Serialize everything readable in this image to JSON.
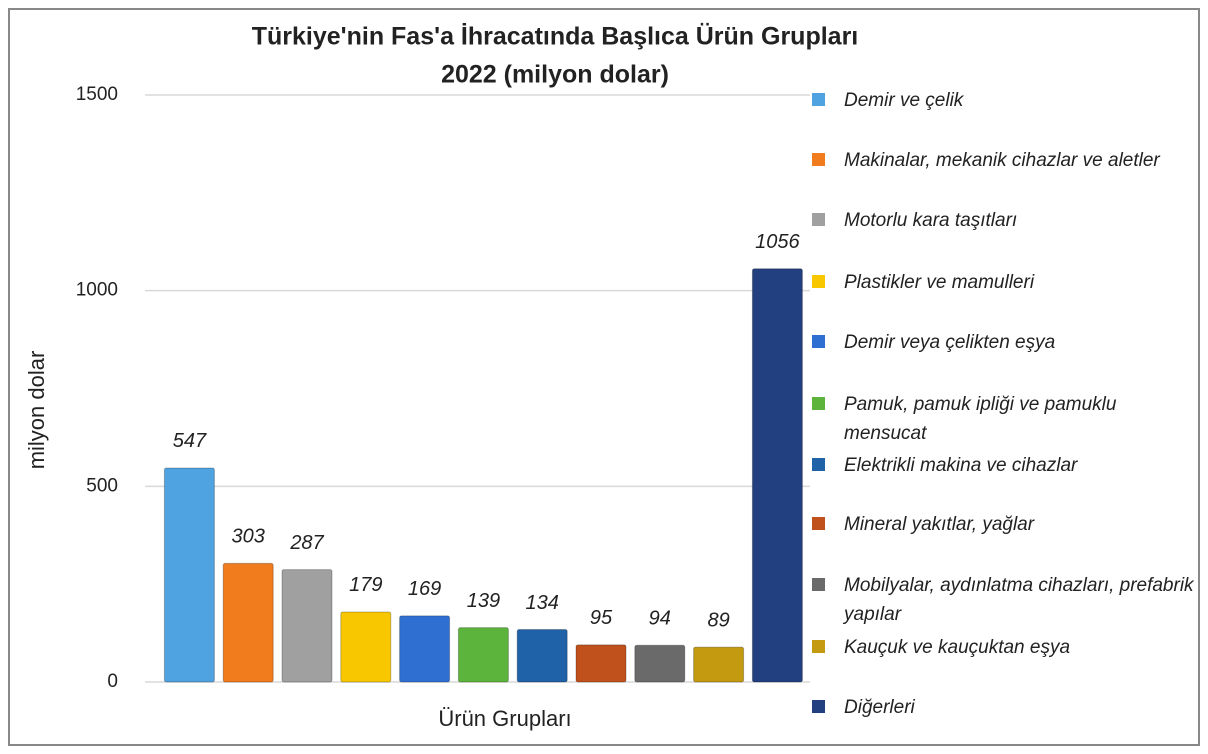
{
  "chart_data": {
    "type": "bar",
    "title": "Türkiye'nin Fas'a İhracatında Başlıca Ürün Grupları",
    "subtitle": "2022 (milyon dolar)",
    "x_label": "Ürün Grupları",
    "y_label": "milyon dolar",
    "categories": [
      "Demir ve çelik",
      "Makinalar, mekanik cihazlar ve aletler",
      "Motorlu kara taşıtları",
      "Plastikler ve mamulleri",
      "Demir veya çelikten eşya",
      "Pamuk, pamuk ipliği ve pamuklu mensucat",
      "Elektrikli makina ve cihazlar",
      "Mineral yakıtlar, yağlar",
      "Mobilyalar, aydınlatma cihazları, prefabrik yapılar",
      "Kauçuk ve kauçuktan eşya",
      "Diğerleri"
    ],
    "values": [
      547,
      303,
      287,
      179,
      169,
      139,
      134,
      95,
      94,
      89,
      1056
    ],
    "colors": [
      "#4fa3e0",
      "#f07c1e",
      "#a0a0a0",
      "#f8c700",
      "#2f6fd1",
      "#5cb43c",
      "#1f62a8",
      "#c0501c",
      "#6a6a6a",
      "#c49a10",
      "#223f80"
    ],
    "ylim": [
      0,
      1500
    ],
    "yticks": [
      0,
      500,
      1000,
      1500
    ],
    "grid": true
  }
}
